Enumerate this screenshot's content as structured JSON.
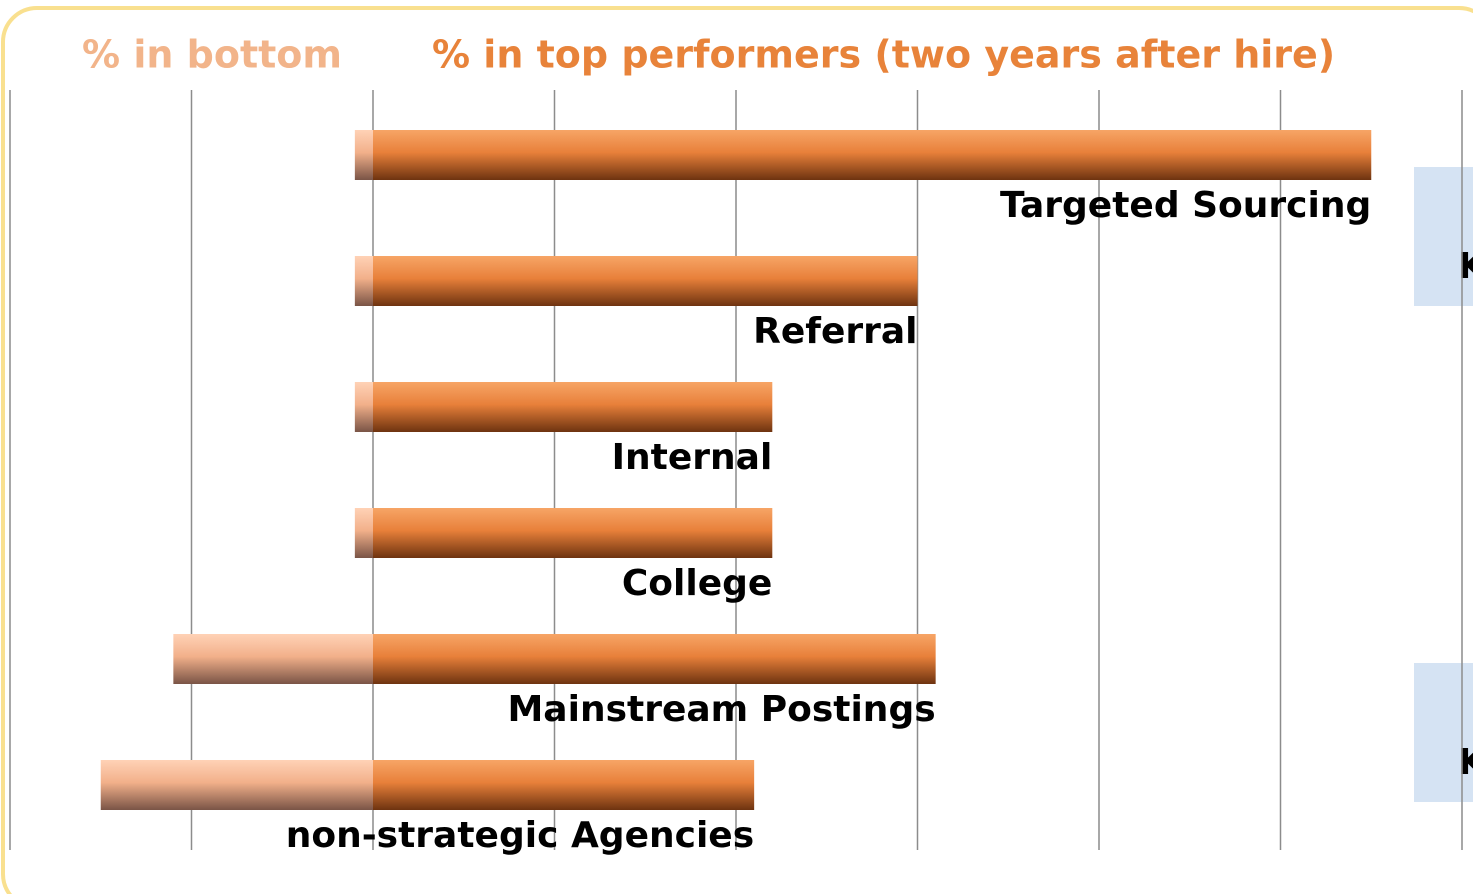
{
  "chart_data": {
    "type": "diverging-bar",
    "categories": [
      "Targeted Sourcing",
      "Referral",
      "Internal",
      "College",
      "Mainstream Postings",
      "non-strategic Agencies"
    ],
    "series": [
      {
        "name": "% in bottom",
        "color": "#f2b48a",
        "values": [
          -1,
          -1,
          -1,
          -1,
          -11,
          -15
        ]
      },
      {
        "name": "% in top performers (two years after hire)",
        "color": "#e8833a",
        "values": [
          55,
          30,
          22,
          22,
          31,
          21
        ]
      }
    ],
    "xlim": [
      -20,
      60
    ],
    "xticks": [
      -20,
      -10,
      0,
      10,
      20,
      30,
      40,
      50,
      60
    ],
    "grid": true,
    "annotations": [
      "K",
      "K"
    ]
  }
}
